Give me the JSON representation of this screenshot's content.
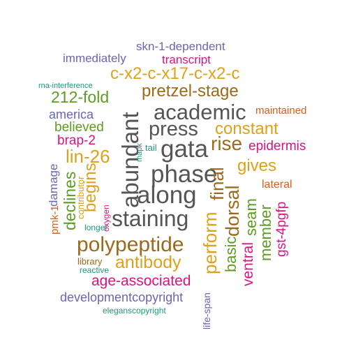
{
  "colors": {
    "gray": "#555555",
    "orange": "#dea11b",
    "brown": "#9b6a1b",
    "green": "#5d9c20",
    "purple": "#6a66b5",
    "magenta": "#d8157f",
    "teal": "#1a9a7a",
    "rust": "#d55e1a"
  },
  "words": [
    {
      "id": "skn-1-dependent",
      "text": "skn-1-dependent",
      "color": "purple"
    },
    {
      "id": "immediately",
      "text": "immediately",
      "color": "purple"
    },
    {
      "id": "transcript",
      "text": "transcript",
      "color": "magenta"
    },
    {
      "id": "c-x2-c-x17-c-x2-c",
      "text": "c-x2-c-x17-c-x2-c",
      "color": "orange"
    },
    {
      "id": "rna-interference",
      "text": "rna-interference",
      "color": "teal"
    },
    {
      "id": "pretzel-stage",
      "text": "pretzel-stage",
      "color": "brown"
    },
    {
      "id": "212-fold",
      "text": "212-fold",
      "color": "green"
    },
    {
      "id": "academic",
      "text": "academic",
      "color": "gray"
    },
    {
      "id": "america",
      "text": "america",
      "color": "purple"
    },
    {
      "id": "maintained",
      "text": "maintained",
      "color": "rust"
    },
    {
      "id": "press",
      "text": "press",
      "color": "gray"
    },
    {
      "id": "believed",
      "text": "believed",
      "color": "green"
    },
    {
      "id": "constant",
      "text": "constant",
      "color": "orange"
    },
    {
      "id": "brap-2",
      "text": "brap-2",
      "color": "magenta"
    },
    {
      "id": "abundant",
      "text": "abundant",
      "color": "gray"
    },
    {
      "id": "mapk",
      "text": "mapk",
      "color": "teal"
    },
    {
      "id": "tail",
      "text": "tail",
      "color": "teal"
    },
    {
      "id": "gata",
      "text": "gata",
      "color": "gray"
    },
    {
      "id": "rise",
      "text": "rise",
      "color": "brown"
    },
    {
      "id": "epidermis",
      "text": "epidermis",
      "color": "magenta"
    },
    {
      "id": "lin-26",
      "text": "lin-26",
      "color": "orange"
    },
    {
      "id": "phase",
      "text": "phase",
      "color": "gray"
    },
    {
      "id": "gives",
      "text": "gives",
      "color": "orange"
    },
    {
      "id": "damage",
      "text": "damage",
      "color": "purple"
    },
    {
      "id": "final",
      "text": "final",
      "color": "brown"
    },
    {
      "id": "lateral",
      "text": "lateral",
      "color": "rust"
    },
    {
      "id": "begins",
      "text": "begins",
      "color": "orange"
    },
    {
      "id": "along",
      "text": "along",
      "color": "gray"
    },
    {
      "id": "declines",
      "text": "declines",
      "color": "green"
    },
    {
      "id": "dorsal",
      "text": "dorsal",
      "color": "brown"
    },
    {
      "id": "contributor",
      "text": "contributor",
      "color": "orange"
    },
    {
      "id": "oxygen",
      "text": "oxygen",
      "color": "magenta"
    },
    {
      "id": "seam",
      "text": "seam",
      "color": "green"
    },
    {
      "id": "gst-4pgfp",
      "text": "gst-4pgfp",
      "color": "magenta"
    },
    {
      "id": "pmk-1",
      "text": "pmk-1",
      "color": "rust"
    },
    {
      "id": "staining",
      "text": "staining",
      "color": "gray"
    },
    {
      "id": "longer",
      "text": "longer",
      "color": "teal"
    },
    {
      "id": "perform",
      "text": "perform",
      "color": "orange"
    },
    {
      "id": "basic",
      "text": "basic",
      "color": "green"
    },
    {
      "id": "ventral",
      "text": "ventral",
      "color": "magenta"
    },
    {
      "id": "member",
      "text": "member",
      "color": "green"
    },
    {
      "id": "polypeptide",
      "text": "polypeptide",
      "color": "brown"
    },
    {
      "id": "library",
      "text": "library",
      "color": "brown"
    },
    {
      "id": "antibody",
      "text": "antibody",
      "color": "orange"
    },
    {
      "id": "reactive",
      "text": "reactive",
      "color": "teal"
    },
    {
      "id": "age-associated",
      "text": "age-associated",
      "color": "magenta"
    },
    {
      "id": "developmentcopyright",
      "text": "developmentcopyright",
      "color": "purple"
    },
    {
      "id": "life-span",
      "text": "life-span",
      "color": "purple"
    },
    {
      "id": "eleganscopyright",
      "text": "eleganscopyright",
      "color": "teal"
    }
  ]
}
